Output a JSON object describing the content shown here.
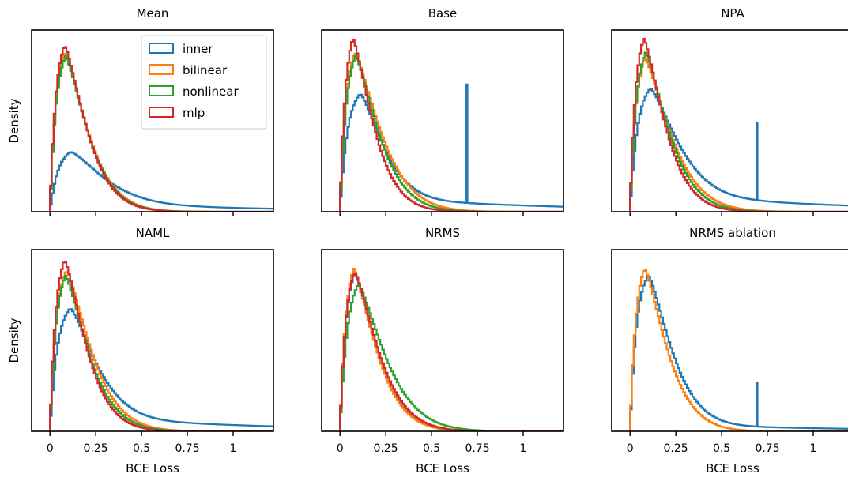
{
  "colors": {
    "inner": "#1f77b4",
    "bilinear": "#ff7f0e",
    "nonlinear": "#2ca02c",
    "mlp": "#d62728",
    "axes": "#000000",
    "background": "#ffffff"
  },
  "legend": {
    "placement": "upper-right of first panel",
    "entries": [
      {
        "key": "inner",
        "label": "inner"
      },
      {
        "key": "bilinear",
        "label": "bilinear"
      },
      {
        "key": "nonlinear",
        "label": "nonlinear"
      },
      {
        "key": "mlp",
        "label": "mlp"
      }
    ]
  },
  "chart_data": [
    {
      "type": "histogram-step",
      "title": "Mean",
      "xlabel": "",
      "ylabel": "Density",
      "xlim": [
        -0.1,
        1.22
      ],
      "ylim": [
        0,
        10.5
      ],
      "xticks": [
        0,
        0.25,
        0.5,
        0.75,
        1
      ],
      "xtick_labels": [
        "",
        "",
        "",
        "",
        ""
      ],
      "yticks_shown": false,
      "series": [
        {
          "key": "inner",
          "peak_x": 0.11,
          "peak_y": 3.45,
          "rise": 0.045,
          "right": 0.24,
          "tail": 0.6
        },
        {
          "key": "bilinear",
          "peak_x": 0.08,
          "peak_y": 9.2,
          "rise": 0.035,
          "right": 0.17
        },
        {
          "key": "nonlinear",
          "peak_x": 0.085,
          "peak_y": 9.0,
          "rise": 0.035,
          "right": 0.165
        },
        {
          "key": "mlp",
          "peak_x": 0.08,
          "peak_y": 9.6,
          "rise": 0.032,
          "right": 0.16
        }
      ],
      "spikes": []
    },
    {
      "type": "histogram-step",
      "title": "Base",
      "xlabel": "",
      "ylabel": "",
      "xlim": [
        -0.1,
        1.22
      ],
      "ylim": [
        0,
        10.5
      ],
      "xticks": [
        0,
        0.25,
        0.5,
        0.75,
        1
      ],
      "xtick_labels": [
        "",
        "",
        "",
        "",
        ""
      ],
      "yticks_shown": false,
      "series": [
        {
          "key": "inner",
          "peak_x": 0.11,
          "peak_y": 6.8,
          "rise": 0.04,
          "right": 0.17,
          "tail": 1.0
        },
        {
          "key": "bilinear",
          "peak_x": 0.08,
          "peak_y": 9.2,
          "rise": 0.035,
          "right": 0.19
        },
        {
          "key": "nonlinear",
          "peak_x": 0.085,
          "peak_y": 9.0,
          "rise": 0.035,
          "right": 0.17
        },
        {
          "key": "mlp",
          "peak_x": 0.07,
          "peak_y": 10.0,
          "rise": 0.03,
          "right": 0.15
        }
      ],
      "spikes": [
        {
          "key": "inner",
          "x": 0.693,
          "height": 6.9
        }
      ]
    },
    {
      "type": "histogram-step",
      "title": "NPA",
      "xlabel": "",
      "ylabel": "",
      "xlim": [
        -0.1,
        1.22
      ],
      "ylim": [
        0,
        10.5
      ],
      "xticks": [
        0,
        0.25,
        0.5,
        0.75,
        1
      ],
      "xtick_labels": [
        "",
        "",
        "",
        "",
        ""
      ],
      "yticks_shown": false,
      "series": [
        {
          "key": "inner",
          "peak_x": 0.11,
          "peak_y": 7.1,
          "rise": 0.04,
          "right": 0.2,
          "tail": 1.2
        },
        {
          "key": "bilinear",
          "peak_x": 0.08,
          "peak_y": 8.9,
          "rise": 0.035,
          "right": 0.19
        },
        {
          "key": "nonlinear",
          "peak_x": 0.085,
          "peak_y": 9.2,
          "rise": 0.035,
          "right": 0.17
        },
        {
          "key": "mlp",
          "peak_x": 0.075,
          "peak_y": 10.0,
          "rise": 0.03,
          "right": 0.155
        }
      ],
      "spikes": [
        {
          "key": "inner",
          "x": 0.693,
          "height": 4.5
        }
      ]
    },
    {
      "type": "histogram-step",
      "title": "NAML",
      "xlabel": "BCE Loss",
      "ylabel": "Density",
      "xlim": [
        -0.1,
        1.22
      ],
      "ylim": [
        0,
        10.5
      ],
      "xticks": [
        0,
        0.25,
        0.5,
        0.75,
        1
      ],
      "xtick_labels": [
        "0",
        "0.25",
        "0.5",
        "0.75",
        "1"
      ],
      "yticks_shown": false,
      "series": [
        {
          "key": "inner",
          "peak_x": 0.11,
          "peak_y": 7.1,
          "rise": 0.04,
          "right": 0.19,
          "tail": 1.0
        },
        {
          "key": "bilinear",
          "peak_x": 0.09,
          "peak_y": 9.3,
          "rise": 0.035,
          "right": 0.18
        },
        {
          "key": "nonlinear",
          "peak_x": 0.085,
          "peak_y": 9.0,
          "rise": 0.035,
          "right": 0.17
        },
        {
          "key": "mlp",
          "peak_x": 0.08,
          "peak_y": 9.9,
          "rise": 0.032,
          "right": 0.155
        }
      ],
      "spikes": []
    },
    {
      "type": "histogram-step",
      "title": "NRMS",
      "xlabel": "BCE Loss",
      "ylabel": "",
      "xlim": [
        -0.1,
        1.22
      ],
      "ylim": [
        0,
        10.5
      ],
      "xticks": [
        0,
        0.25,
        0.5,
        0.75,
        1
      ],
      "xtick_labels": [
        "0",
        "0.25",
        "0.5",
        "0.75",
        "1"
      ],
      "yticks_shown": false,
      "series": [
        {
          "key": "inner",
          "peak_x": 0.08,
          "peak_y": 9.1,
          "rise": 0.032,
          "right": 0.165
        },
        {
          "key": "bilinear",
          "peak_x": 0.075,
          "peak_y": 9.4,
          "rise": 0.032,
          "right": 0.165
        },
        {
          "key": "nonlinear",
          "peak_x": 0.1,
          "peak_y": 8.5,
          "rise": 0.04,
          "right": 0.2
        },
        {
          "key": "mlp",
          "peak_x": 0.08,
          "peak_y": 9.2,
          "rise": 0.032,
          "right": 0.175
        }
      ],
      "spikes": []
    },
    {
      "type": "histogram-step",
      "title": "NRMS ablation",
      "xlabel": "BCE Loss",
      "ylabel": "",
      "xlim": [
        -0.1,
        1.22
      ],
      "ylim": [
        0,
        10.5
      ],
      "xticks": [
        0,
        0.25,
        0.5,
        0.75,
        1
      ],
      "xtick_labels": [
        "0",
        "0.25",
        "0.5",
        "0.75",
        "1"
      ],
      "yticks_shown": false,
      "series": [
        {
          "key": "inner",
          "peak_x": 0.1,
          "peak_y": 9.0,
          "rise": 0.035,
          "right": 0.17,
          "tail": 0.5
        },
        {
          "key": "bilinear",
          "peak_x": 0.08,
          "peak_y": 9.4,
          "rise": 0.032,
          "right": 0.165
        }
      ],
      "spikes": [
        {
          "key": "inner",
          "x": 0.693,
          "height": 2.6
        }
      ]
    }
  ]
}
